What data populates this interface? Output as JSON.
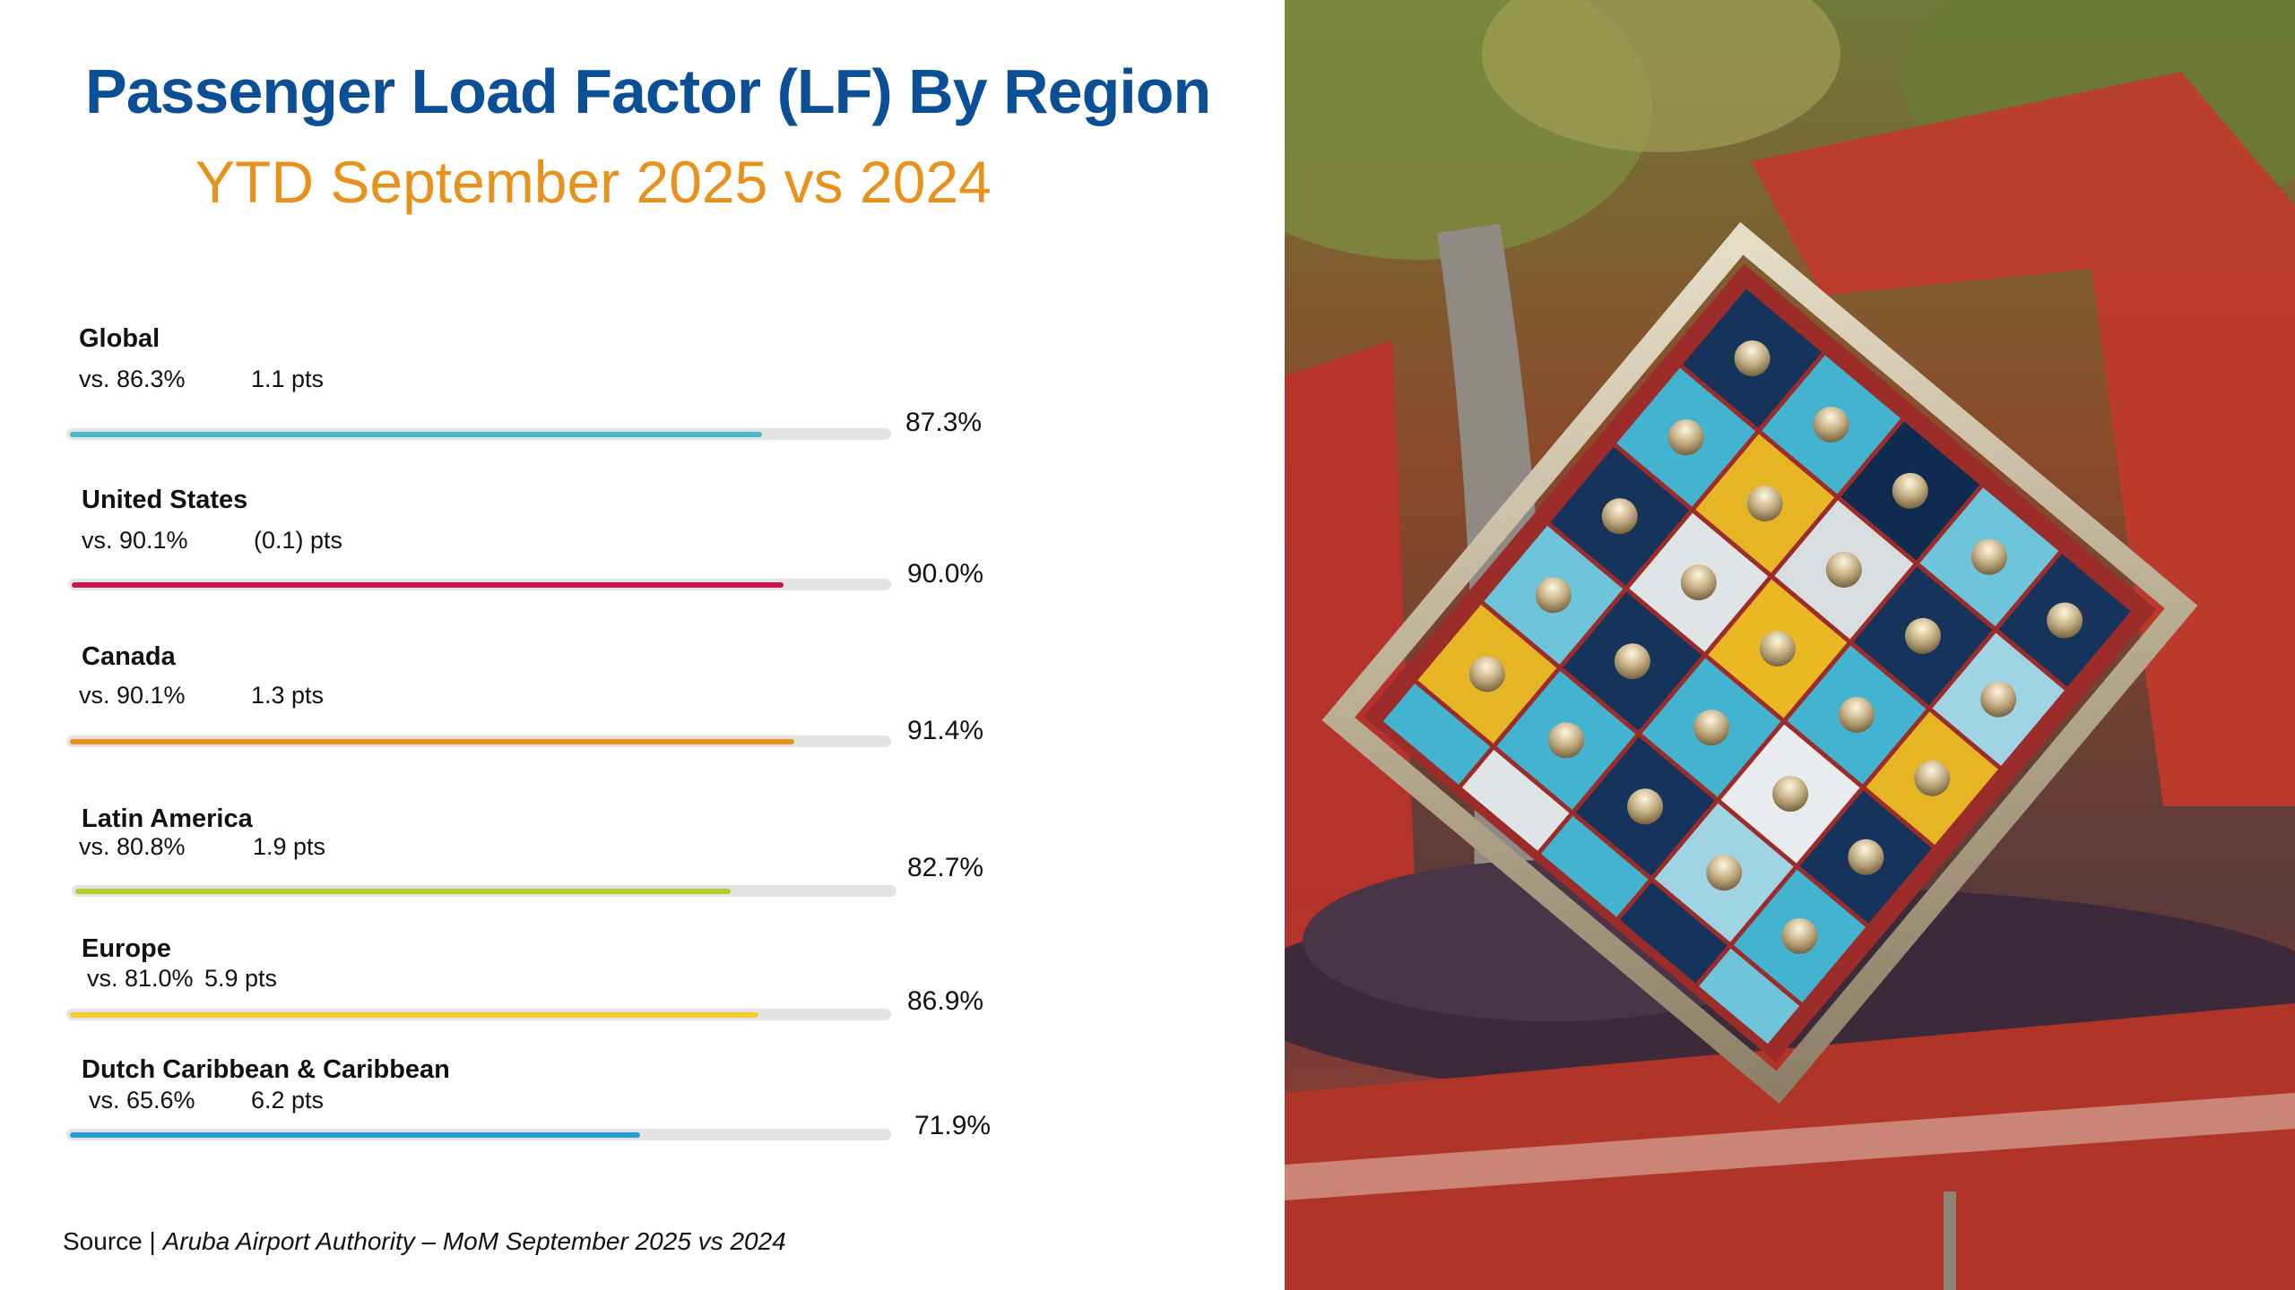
{
  "header": {
    "title": "Passenger Load Factor (LF) By Region",
    "subtitle": "YTD September 2025 vs 2024"
  },
  "chart_data": {
    "type": "bar",
    "orientation": "horizontal",
    "title": "Passenger Load Factor (LF) By Region",
    "subtitle": "YTD September 2025 vs 2024",
    "unit": "%",
    "xlim": [
      0,
      100
    ],
    "categories": [
      "Global",
      "United States",
      "Canada",
      "Latin America",
      "Europe",
      "Dutch Caribbean & Caribbean"
    ],
    "values": [
      87.3,
      90.0,
      91.4,
      82.7,
      86.9,
      71.9
    ],
    "previous_values": [
      86.3,
      90.1,
      90.1,
      80.8,
      81.0,
      65.6
    ],
    "changes_pts": [
      1.1,
      -0.1,
      1.3,
      1.9,
      5.9,
      6.2
    ],
    "regions": [
      {
        "name": "Global",
        "vs_text": "vs. 86.3%",
        "delta_text": "1.1 pts",
        "value_text": "87.3%",
        "value": 87.3,
        "color": "#4ab8c8"
      },
      {
        "name": "United States",
        "vs_text": "vs. 90.1%",
        "delta_text": "(0.1) pts",
        "value_text": "90.0%",
        "value": 90.0,
        "color": "#c8174f"
      },
      {
        "name": "Canada",
        "vs_text": "vs. 90.1%",
        "delta_text": "1.3 pts",
        "value_text": "91.4%",
        "value": 91.4,
        "color": "#e8921c"
      },
      {
        "name": "Latin America",
        "vs_text": "vs. 80.8%",
        "delta_text": "1.9 pts",
        "value_text": "82.7%",
        "value": 82.7,
        "color": "#b5cc2e"
      },
      {
        "name": "Europe",
        "vs_text": "vs. 81.0%",
        "delta_text": "5.9 pts",
        "value_text": "86.9%",
        "value": 86.9,
        "color": "#f1cc2a"
      },
      {
        "name": "Dutch Caribbean & Caribbean",
        "vs_text": "vs. 65.6%",
        "delta_text": "6.2 pts",
        "value_text": "71.9%",
        "value": 71.9,
        "color": "#2a9ad4"
      }
    ]
  },
  "footer": {
    "source_label": "Source | ",
    "source_text": "Aruba Airport Authority – MoM September 2025 vs 2024"
  },
  "photo": {
    "subject": "mosaic-sculpture"
  }
}
